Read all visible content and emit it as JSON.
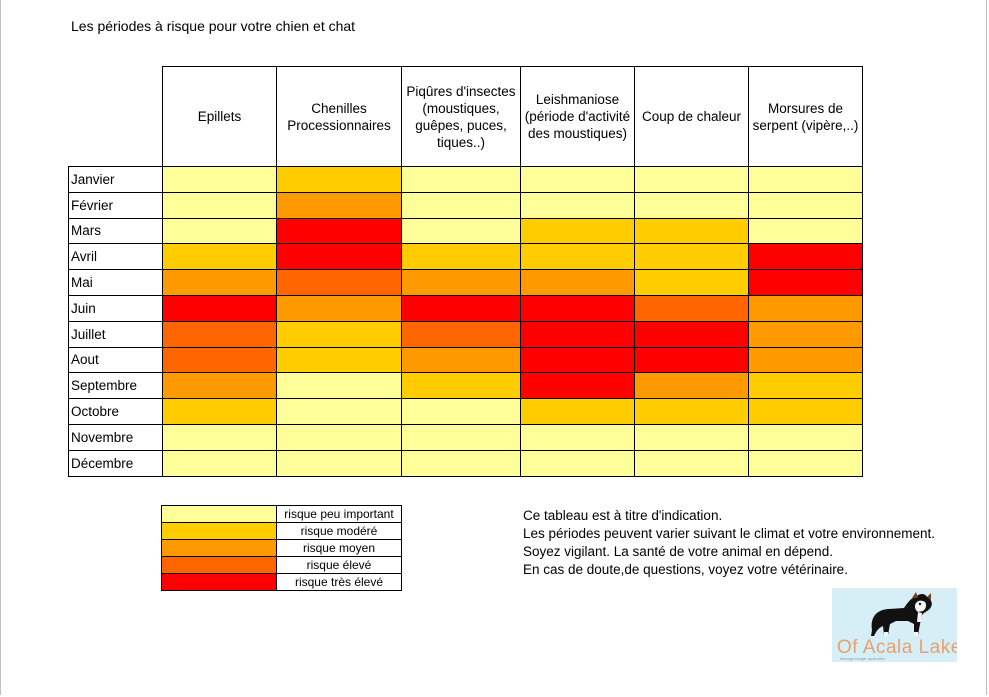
{
  "title": "Les périodes à risque pour votre chien et chat",
  "levels": [
    {
      "label": "risque peu important",
      "color": "#FFFF99"
    },
    {
      "label": "risque modéré",
      "color": "#FFCC00"
    },
    {
      "label": "risque  moyen",
      "color": "#FF9900"
    },
    {
      "label": "risque élevé",
      "color": "#FF6600"
    },
    {
      "label": "risque très élevé",
      "color": "#FF0000"
    }
  ],
  "notes": [
    "Ce tableau est à titre d'indication.",
    "Les périodes peuvent varier suivant le climat et votre environnement.",
    "Soyez vigilant. La santé de votre animal en dépend.",
    "En cas de doute,de questions, voyez votre vétérinaire."
  ],
  "logo": {
    "name": "Of Acala Lake",
    "subtitle": "élevage berger australien"
  },
  "chart_data": {
    "type": "heatmap",
    "title": "Les périodes à risque pour votre chien et chat",
    "columns": [
      "Epillets",
      "Chenilles Processionnaires",
      "Piqûres d'insectes (moustiques, guêpes, puces, tiques..)",
      "Leishmaniose (période d'activité des moustiques)",
      "Coup de chaleur",
      "Morsures de serpent (vipère,..)"
    ],
    "rows": [
      "Janvier",
      "Février",
      "Mars",
      "Avril",
      "Mai",
      "Juin",
      "Juillet",
      "Aout",
      "Septembre",
      "Octobre",
      "Novembre",
      "Décembre"
    ],
    "values": [
      [
        0,
        1,
        0,
        0,
        0,
        0
      ],
      [
        0,
        2,
        0,
        0,
        0,
        0
      ],
      [
        0,
        4,
        0,
        1,
        1,
        0
      ],
      [
        1,
        4,
        1,
        1,
        1,
        4
      ],
      [
        2,
        3,
        2,
        2,
        1,
        4
      ],
      [
        4,
        2,
        4,
        4,
        3,
        2
      ],
      [
        3,
        1,
        3,
        4,
        4,
        2
      ],
      [
        3,
        1,
        2,
        4,
        4,
        2
      ],
      [
        2,
        0,
        1,
        4,
        2,
        1
      ],
      [
        1,
        0,
        0,
        1,
        1,
        1
      ],
      [
        0,
        0,
        0,
        0,
        0,
        0
      ],
      [
        0,
        0,
        0,
        0,
        0,
        0
      ]
    ]
  }
}
